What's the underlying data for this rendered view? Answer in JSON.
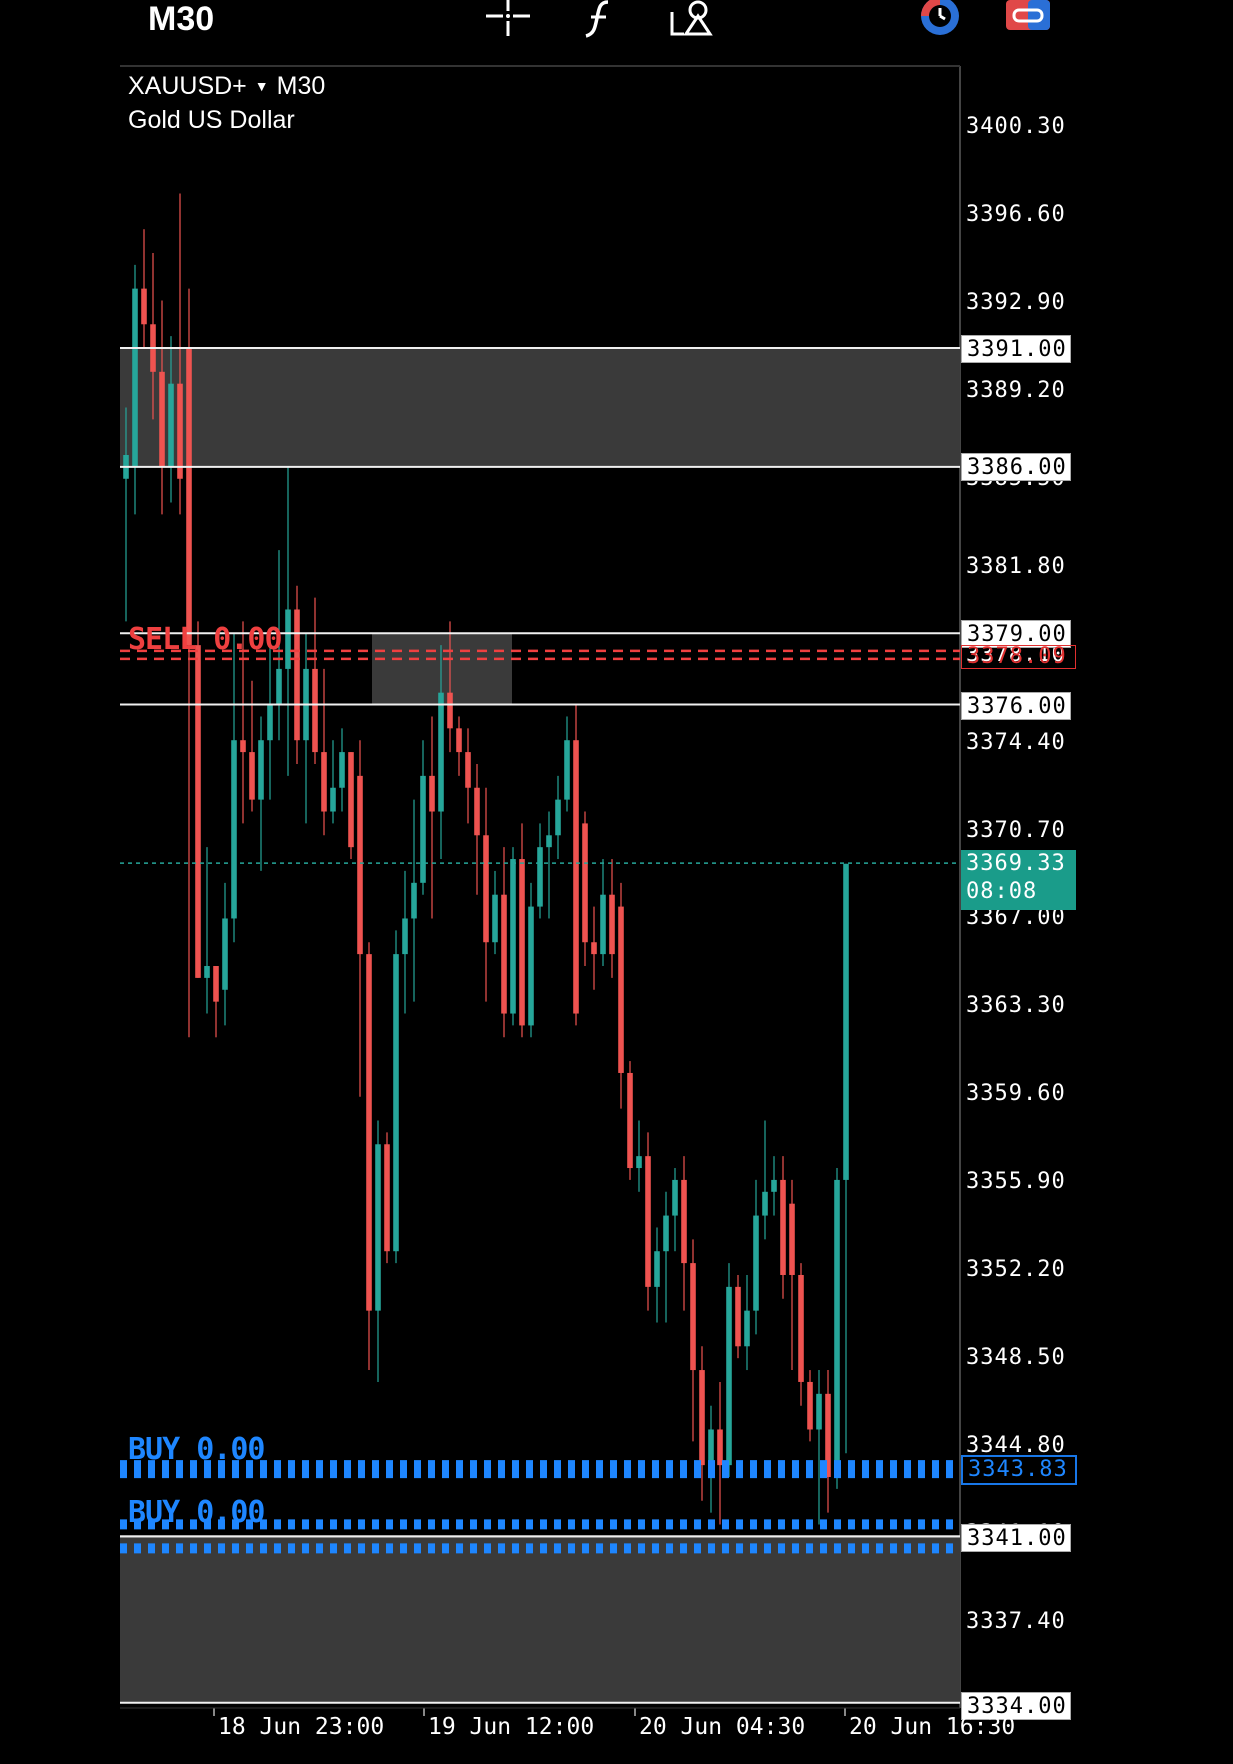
{
  "toolbar": {
    "timeframe": "M30",
    "icons": [
      "crosshair-icon",
      "indicators-icon",
      "objects-icon",
      "clock-icon",
      "trade-icon"
    ]
  },
  "symbol": {
    "name": "XAUUSD+",
    "timeframe": "M30",
    "description": "Gold US Dollar"
  },
  "price_axis": {
    "ticks": [
      "3400.30",
      "3396.60",
      "3392.90",
      "3389.20",
      "3385.50",
      "3381.80",
      "3378.10",
      "3374.40",
      "3370.70",
      "3367.00",
      "3363.30",
      "3359.60",
      "3355.90",
      "3352.20",
      "3348.50",
      "3344.80",
      "3341.10",
      "3337.40"
    ]
  },
  "levels": {
    "l3391": "3391.00",
    "l3386": "3386.00",
    "l3379": "3379.00",
    "l3376": "3376.00",
    "l3341": "3341.00",
    "l3334": "3334.00"
  },
  "orders": {
    "sell_label": "SELL 0.00",
    "sell_price": "3378.09",
    "buy_label_1": "BUY 0.00",
    "buy_label_2": "BUY 0.00",
    "buy_price": "3343.83"
  },
  "current": {
    "price": "3369.33",
    "countdown": "08:08"
  },
  "time_axis": [
    "18 Jun 23:00",
    "19 Jun 12:00",
    "20 Jun 04:30",
    "20 Jun 16:30"
  ],
  "colors": {
    "bull": "#26a69a",
    "bear": "#ef5350",
    "sell": "#ef4040",
    "buy": "#1e86ff",
    "zone": "#3a3a3a"
  },
  "chart_data": {
    "type": "candlestick",
    "symbol": "XAUUSD+",
    "timeframe": "M30",
    "ylim": [
      3334.0,
      3402.0
    ],
    "candles": [
      {
        "o": 3385.5,
        "h": 3388.5,
        "l": 3379.5,
        "c": 3386.5
      },
      {
        "o": 3386.0,
        "h": 3394.5,
        "l": 3384.0,
        "c": 3393.5
      },
      {
        "o": 3393.5,
        "h": 3396.0,
        "l": 3391.0,
        "c": 3392.0
      },
      {
        "o": 3392.0,
        "h": 3395.0,
        "l": 3388.0,
        "c": 3390.0
      },
      {
        "o": 3390.0,
        "h": 3393.0,
        "l": 3384.0,
        "c": 3386.0
      },
      {
        "o": 3386.0,
        "h": 3391.5,
        "l": 3384.5,
        "c": 3389.5
      },
      {
        "o": 3389.5,
        "h": 3397.5,
        "l": 3384.0,
        "c": 3385.5
      },
      {
        "o": 3391.0,
        "h": 3393.5,
        "l": 3362.0,
        "c": 3378.5
      },
      {
        "o": 3378.5,
        "h": 3379.5,
        "l": 3364.5,
        "c": 3364.5
      },
      {
        "o": 3364.5,
        "h": 3370.0,
        "l": 3363.0,
        "c": 3365.0
      },
      {
        "o": 3365.0,
        "h": 3365.0,
        "l": 3362.0,
        "c": 3363.5
      },
      {
        "o": 3364.0,
        "h": 3368.5,
        "l": 3362.5,
        "c": 3367.0
      },
      {
        "o": 3367.0,
        "h": 3379.0,
        "l": 3366.0,
        "c": 3374.5
      },
      {
        "o": 3374.5,
        "h": 3379.5,
        "l": 3371.0,
        "c": 3374.0
      },
      {
        "o": 3374.0,
        "h": 3377.0,
        "l": 3371.5,
        "c": 3372.0
      },
      {
        "o": 3372.0,
        "h": 3375.5,
        "l": 3369.0,
        "c": 3374.5
      },
      {
        "o": 3374.5,
        "h": 3379.0,
        "l": 3372.0,
        "c": 3376.0
      },
      {
        "o": 3376.0,
        "h": 3382.5,
        "l": 3374.5,
        "c": 3377.5
      },
      {
        "o": 3377.5,
        "h": 3386.0,
        "l": 3373.0,
        "c": 3380.0
      },
      {
        "o": 3380.0,
        "h": 3381.0,
        "l": 3373.5,
        "c": 3374.5
      },
      {
        "o": 3374.5,
        "h": 3379.0,
        "l": 3371.0,
        "c": 3377.5
      },
      {
        "o": 3377.5,
        "h": 3380.5,
        "l": 3373.5,
        "c": 3374.0
      },
      {
        "o": 3374.0,
        "h": 3377.5,
        "l": 3370.5,
        "c": 3371.5
      },
      {
        "o": 3371.5,
        "h": 3374.5,
        "l": 3371.0,
        "c": 3372.5
      },
      {
        "o": 3372.5,
        "h": 3375.0,
        "l": 3371.5,
        "c": 3374.0
      },
      {
        "o": 3374.0,
        "h": 3374.0,
        "l": 3369.5,
        "c": 3370.0
      },
      {
        "o": 3373.0,
        "h": 3374.5,
        "l": 3359.5,
        "c": 3365.5
      },
      {
        "o": 3365.5,
        "h": 3366.0,
        "l": 3348.0,
        "c": 3350.5
      },
      {
        "o": 3350.5,
        "h": 3358.5,
        "l": 3347.5,
        "c": 3357.5
      },
      {
        "o": 3357.5,
        "h": 3358.0,
        "l": 3352.5,
        "c": 3353.0
      },
      {
        "o": 3353.0,
        "h": 3366.5,
        "l": 3352.5,
        "c": 3365.5
      },
      {
        "o": 3365.5,
        "h": 3369.0,
        "l": 3363.0,
        "c": 3367.0
      },
      {
        "o": 3367.0,
        "h": 3372.0,
        "l": 3363.5,
        "c": 3368.5
      },
      {
        "o": 3368.5,
        "h": 3374.5,
        "l": 3368.0,
        "c": 3373.0
      },
      {
        "o": 3373.0,
        "h": 3375.5,
        "l": 3367.0,
        "c": 3371.5
      },
      {
        "o": 3371.5,
        "h": 3378.5,
        "l": 3369.5,
        "c": 3376.5
      },
      {
        "o": 3376.5,
        "h": 3379.5,
        "l": 3374.0,
        "c": 3375.0
      },
      {
        "o": 3375.0,
        "h": 3375.5,
        "l": 3373.0,
        "c": 3374.0
      },
      {
        "o": 3374.0,
        "h": 3375.0,
        "l": 3371.0,
        "c": 3372.5
      },
      {
        "o": 3372.5,
        "h": 3373.5,
        "l": 3368.0,
        "c": 3370.5
      },
      {
        "o": 3370.5,
        "h": 3372.5,
        "l": 3363.5,
        "c": 3366.0
      },
      {
        "o": 3366.0,
        "h": 3369.0,
        "l": 3365.5,
        "c": 3368.0
      },
      {
        "o": 3368.0,
        "h": 3370.0,
        "l": 3362.0,
        "c": 3363.0
      },
      {
        "o": 3363.0,
        "h": 3370.0,
        "l": 3362.5,
        "c": 3369.5
      },
      {
        "o": 3369.5,
        "h": 3371.0,
        "l": 3362.0,
        "c": 3362.5
      },
      {
        "o": 3362.5,
        "h": 3368.5,
        "l": 3362.0,
        "c": 3367.5
      },
      {
        "o": 3367.5,
        "h": 3371.0,
        "l": 3367.0,
        "c": 3370.0
      },
      {
        "o": 3370.0,
        "h": 3371.5,
        "l": 3367.0,
        "c": 3370.5
      },
      {
        "o": 3370.5,
        "h": 3373.0,
        "l": 3369.5,
        "c": 3372.0
      },
      {
        "o": 3372.0,
        "h": 3375.5,
        "l": 3371.5,
        "c": 3374.5
      },
      {
        "o": 3374.5,
        "h": 3376.0,
        "l": 3362.5,
        "c": 3363.0
      },
      {
        "o": 3371.0,
        "h": 3371.5,
        "l": 3365.0,
        "c": 3366.0
      },
      {
        "o": 3366.0,
        "h": 3367.5,
        "l": 3364.0,
        "c": 3365.5
      },
      {
        "o": 3365.5,
        "h": 3369.5,
        "l": 3365.0,
        "c": 3368.0
      },
      {
        "o": 3368.0,
        "h": 3369.5,
        "l": 3364.5,
        "c": 3365.5
      },
      {
        "o": 3367.5,
        "h": 3368.5,
        "l": 3359.0,
        "c": 3360.5
      },
      {
        "o": 3360.5,
        "h": 3361.0,
        "l": 3356.0,
        "c": 3356.5
      },
      {
        "o": 3356.5,
        "h": 3358.5,
        "l": 3355.5,
        "c": 3357.0
      },
      {
        "o": 3357.0,
        "h": 3358.0,
        "l": 3350.5,
        "c": 3351.5
      },
      {
        "o": 3351.5,
        "h": 3354.0,
        "l": 3350.0,
        "c": 3353.0
      },
      {
        "o": 3353.0,
        "h": 3355.5,
        "l": 3350.0,
        "c": 3354.5
      },
      {
        "o": 3354.5,
        "h": 3356.5,
        "l": 3353.0,
        "c": 3356.0
      },
      {
        "o": 3356.0,
        "h": 3357.0,
        "l": 3350.5,
        "c": 3352.5
      },
      {
        "o": 3352.5,
        "h": 3353.5,
        "l": 3345.0,
        "c": 3348.0
      },
      {
        "o": 3348.0,
        "h": 3349.0,
        "l": 3342.5,
        "c": 3344.0
      },
      {
        "o": 3344.0,
        "h": 3346.5,
        "l": 3342.0,
        "c": 3345.5
      },
      {
        "o": 3345.5,
        "h": 3347.5,
        "l": 3341.5,
        "c": 3344.0
      },
      {
        "o": 3344.0,
        "h": 3352.5,
        "l": 3343.5,
        "c": 3351.5
      },
      {
        "o": 3351.5,
        "h": 3352.0,
        "l": 3348.5,
        "c": 3349.0
      },
      {
        "o": 3349.0,
        "h": 3352.0,
        "l": 3348.0,
        "c": 3350.5
      },
      {
        "o": 3350.5,
        "h": 3356.0,
        "l": 3349.5,
        "c": 3354.5
      },
      {
        "o": 3354.5,
        "h": 3358.5,
        "l": 3353.5,
        "c": 3355.5
      },
      {
        "o": 3355.5,
        "h": 3357.0,
        "l": 3354.5,
        "c": 3356.0
      },
      {
        "o": 3356.0,
        "h": 3357.0,
        "l": 3351.0,
        "c": 3352.0
      },
      {
        "o": 3355.0,
        "h": 3356.0,
        "l": 3348.0,
        "c": 3352.0
      },
      {
        "o": 3352.0,
        "h": 3352.5,
        "l": 3346.5,
        "c": 3347.5
      },
      {
        "o": 3347.5,
        "h": 3348.0,
        "l": 3345.0,
        "c": 3345.5
      },
      {
        "o": 3345.5,
        "h": 3348.0,
        "l": 3341.5,
        "c": 3347.0
      },
      {
        "o": 3347.0,
        "h": 3348.0,
        "l": 3342.0,
        "c": 3343.5
      },
      {
        "o": 3343.5,
        "h": 3356.5,
        "l": 3343.0,
        "c": 3356.0
      },
      {
        "o": 3356.0,
        "h": 3369.3,
        "l": 3344.5,
        "c": 3369.3
      }
    ]
  }
}
